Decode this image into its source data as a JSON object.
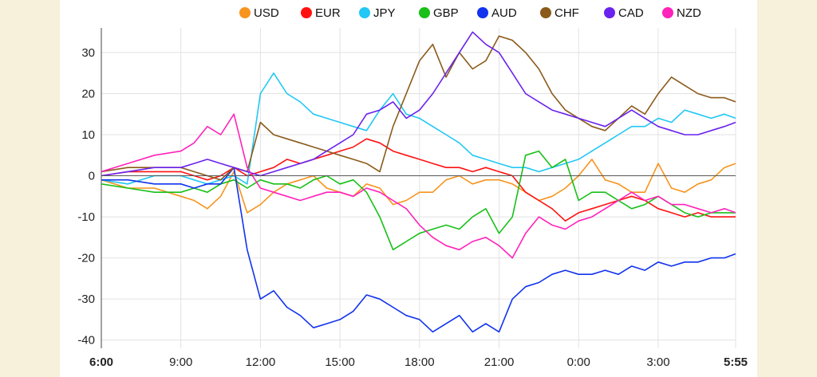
{
  "chart_data": {
    "type": "line",
    "title": "",
    "xlabel": "",
    "ylabel": "",
    "ylim": [
      -42,
      36
    ],
    "y_ticks": [
      30,
      20,
      10,
      0,
      -10,
      -20,
      -30,
      -40
    ],
    "x_ticks": [
      {
        "label": "6:00",
        "t": 0,
        "bold": true
      },
      {
        "label": "9:00",
        "t": 3
      },
      {
        "label": "12:00",
        "t": 6
      },
      {
        "label": "15:00",
        "t": 9
      },
      {
        "label": "18:00",
        "t": 12
      },
      {
        "label": "21:00",
        "t": 15
      },
      {
        "label": "0:00",
        "t": 18
      },
      {
        "label": "3:00",
        "t": 21
      },
      {
        "label": "5:55",
        "t": 23.92,
        "bold": true
      }
    ],
    "xlim": [
      0,
      23.92
    ],
    "grid": true,
    "zero_line": true,
    "legend": "top",
    "series": [
      {
        "name": "USD",
        "color": "#f7941d",
        "t": [
          0,
          1,
          2,
          3,
          3.5,
          4,
          4.5,
          5,
          5.5,
          6,
          6.5,
          7,
          7.5,
          8,
          8.5,
          9,
          9.5,
          10,
          10.5,
          11,
          11.5,
          12,
          12.5,
          13,
          13.5,
          14,
          14.5,
          15,
          15.5,
          16,
          16.5,
          17,
          17.5,
          18,
          18.5,
          19,
          19.5,
          20,
          20.5,
          21,
          21.5,
          22,
          22.5,
          23,
          23.5,
          23.92
        ],
        "values": [
          -1,
          -3,
          -3,
          -5,
          -6,
          -8,
          -5,
          1,
          -9,
          -7,
          -4,
          -2,
          -1,
          0,
          -3,
          -4,
          -5,
          -2,
          -3,
          -7,
          -6,
          -4,
          -4,
          -1,
          0,
          -2,
          -1,
          -1,
          -2,
          -4,
          -6,
          -5,
          -3,
          0,
          4,
          -1,
          -2,
          -4,
          -4,
          3,
          -3,
          -4,
          -2,
          -1,
          2,
          3
        ]
      },
      {
        "name": "EUR",
        "color": "#ff1111",
        "t": [
          0,
          1,
          2,
          3,
          3.5,
          4,
          4.5,
          5,
          5.5,
          6,
          6.5,
          7,
          7.5,
          8,
          8.5,
          9,
          9.5,
          10,
          10.5,
          11,
          11.5,
          12,
          12.5,
          13,
          13.5,
          14,
          14.5,
          15,
          15.5,
          16,
          16.5,
          17,
          17.5,
          18,
          18.5,
          19,
          19.5,
          20,
          20.5,
          21,
          21.5,
          22,
          22.5,
          23,
          23.5,
          23.92
        ],
        "values": [
          0,
          1,
          1,
          1,
          0,
          -1,
          0,
          2,
          0,
          1,
          2,
          4,
          3,
          4,
          5,
          6,
          7,
          9,
          8,
          6,
          5,
          4,
          3,
          2,
          2,
          1,
          2,
          1,
          0,
          -4,
          -6,
          -8,
          -11,
          -9,
          -8,
          -7,
          -6,
          -5,
          -6,
          -8,
          -9,
          -10,
          -9,
          -10,
          -10,
          -10
        ]
      },
      {
        "name": "JPY",
        "color": "#22c7f5",
        "t": [
          0,
          1,
          2,
          3,
          3.5,
          4,
          4.5,
          5,
          5.5,
          6,
          6.5,
          7,
          7.5,
          8,
          8.5,
          9,
          9.5,
          10,
          10.5,
          11,
          11.5,
          12,
          12.5,
          13,
          13.5,
          14,
          14.5,
          15,
          15.5,
          16,
          16.5,
          17,
          17.5,
          18,
          18.5,
          19,
          19.5,
          20,
          20.5,
          21,
          21.5,
          22,
          22.5,
          23,
          23.5,
          23.92
        ],
        "values": [
          -1,
          -2,
          0,
          0,
          -1,
          -2,
          -1,
          0,
          -2,
          20,
          25,
          20,
          18,
          15,
          14,
          13,
          12,
          11,
          16,
          20,
          15,
          14,
          12,
          10,
          8,
          5,
          4,
          3,
          2,
          2,
          1,
          2,
          3,
          4,
          6,
          8,
          10,
          12,
          12,
          14,
          13,
          16,
          15,
          14,
          15,
          14
        ]
      },
      {
        "name": "GBP",
        "color": "#18c018",
        "t": [
          0,
          1,
          2,
          3,
          3.5,
          4,
          4.5,
          5,
          5.5,
          6,
          6.5,
          7,
          7.5,
          8,
          8.5,
          9,
          9.5,
          10,
          10.5,
          11,
          11.5,
          12,
          12.5,
          13,
          13.5,
          14,
          14.5,
          15,
          15.5,
          16,
          16.5,
          17,
          17.5,
          18,
          18.5,
          19,
          19.5,
          20,
          20.5,
          21,
          21.5,
          22,
          22.5,
          23,
          23.5,
          23.92
        ],
        "values": [
          -2,
          -3,
          -4,
          -4,
          -3,
          -4,
          -2,
          -1,
          -3,
          -1,
          -2,
          -2,
          -3,
          -1,
          0,
          -2,
          -1,
          -4,
          -10,
          -18,
          -16,
          -14,
          -13,
          -12,
          -13,
          -10,
          -8,
          -14,
          -10,
          5,
          6,
          2,
          4,
          -6,
          -4,
          -4,
          -6,
          -8,
          -7,
          -5,
          -7,
          -9,
          -10,
          -9,
          -9,
          -9
        ]
      },
      {
        "name": "AUD",
        "color": "#1133ee",
        "t": [
          0,
          1,
          2,
          3,
          3.5,
          4,
          4.5,
          5,
          5.5,
          6,
          6.5,
          7,
          7.5,
          8,
          8.5,
          9,
          9.5,
          10,
          10.5,
          11,
          11.5,
          12,
          12.5,
          13,
          13.5,
          14,
          14.5,
          15,
          15.5,
          16,
          16.5,
          17,
          17.5,
          18,
          18.5,
          19,
          19.5,
          20,
          20.5,
          21,
          21.5,
          22,
          22.5,
          23,
          23.5,
          23.92
        ],
        "values": [
          -1,
          -1,
          -2,
          -2,
          -3,
          -2,
          -2,
          2,
          -18,
          -30,
          -28,
          -32,
          -34,
          -37,
          -36,
          -35,
          -33,
          -29,
          -30,
          -32,
          -34,
          -35,
          -38,
          -36,
          -34,
          -38,
          -36,
          -38,
          -30,
          -27,
          -26,
          -24,
          -23,
          -24,
          -24,
          -23,
          -24,
          -22,
          -23,
          -21,
          -22,
          -21,
          -21,
          -20,
          -20,
          -19
        ]
      },
      {
        "name": "CHF",
        "color": "#8b5a1a",
        "t": [
          0,
          1,
          2,
          3,
          3.5,
          4,
          4.5,
          5,
          5.5,
          6,
          6.5,
          7,
          7.5,
          8,
          8.5,
          9,
          9.5,
          10,
          10.5,
          11,
          11.5,
          12,
          12.5,
          13,
          13.5,
          14,
          14.5,
          15,
          15.5,
          16,
          16.5,
          17,
          17.5,
          18,
          18.5,
          19,
          19.5,
          20,
          20.5,
          21,
          21.5,
          22,
          22.5,
          23,
          23.5,
          23.92
        ],
        "values": [
          1,
          2,
          2,
          2,
          1,
          0,
          -1,
          2,
          1,
          13,
          10,
          9,
          8,
          7,
          6,
          5,
          4,
          3,
          1,
          12,
          20,
          28,
          32,
          24,
          30,
          26,
          28,
          34,
          33,
          30,
          26,
          20,
          16,
          14,
          12,
          11,
          14,
          17,
          15,
          20,
          24,
          22,
          20,
          19,
          19,
          18
        ]
      },
      {
        "name": "CAD",
        "color": "#6a22ee",
        "t": [
          0,
          1,
          2,
          3,
          3.5,
          4,
          4.5,
          5,
          5.5,
          6,
          6.5,
          7,
          7.5,
          8,
          8.5,
          9,
          9.5,
          10,
          10.5,
          11,
          11.5,
          12,
          12.5,
          13,
          13.5,
          14,
          14.5,
          15,
          15.5,
          16,
          16.5,
          17,
          17.5,
          18,
          18.5,
          19,
          19.5,
          20,
          20.5,
          21,
          21.5,
          22,
          22.5,
          23,
          23.5,
          23.92
        ],
        "values": [
          0,
          1,
          2,
          2,
          3,
          4,
          3,
          2,
          1,
          0,
          1,
          2,
          3,
          4,
          6,
          8,
          10,
          15,
          16,
          18,
          14,
          16,
          20,
          25,
          30,
          35,
          32,
          30,
          25,
          20,
          18,
          16,
          15,
          14,
          13,
          12,
          14,
          16,
          14,
          12,
          11,
          10,
          10,
          11,
          12,
          13
        ]
      },
      {
        "name": "NZD",
        "color": "#ff22bb",
        "t": [
          0,
          1,
          2,
          3,
          3.5,
          4,
          4.5,
          5,
          5.5,
          6,
          6.5,
          7,
          7.5,
          8,
          8.5,
          9,
          9.5,
          10,
          10.5,
          11,
          11.5,
          12,
          12.5,
          13,
          13.5,
          14,
          14.5,
          15,
          15.5,
          16,
          16.5,
          17,
          17.5,
          18,
          18.5,
          19,
          19.5,
          20,
          20.5,
          21,
          21.5,
          22,
          22.5,
          23,
          23.5,
          23.92
        ],
        "values": [
          1,
          3,
          5,
          6,
          8,
          12,
          10,
          15,
          2,
          -3,
          -4,
          -5,
          -6,
          -5,
          -4,
          -4,
          -5,
          -3,
          -4,
          -6,
          -8,
          -12,
          -15,
          -17,
          -18,
          -16,
          -15,
          -17,
          -20,
          -14,
          -10,
          -12,
          -13,
          -11,
          -10,
          -8,
          -6,
          -4,
          -6,
          -5,
          -7,
          -7,
          -8,
          -9,
          -8,
          -9
        ]
      }
    ]
  }
}
